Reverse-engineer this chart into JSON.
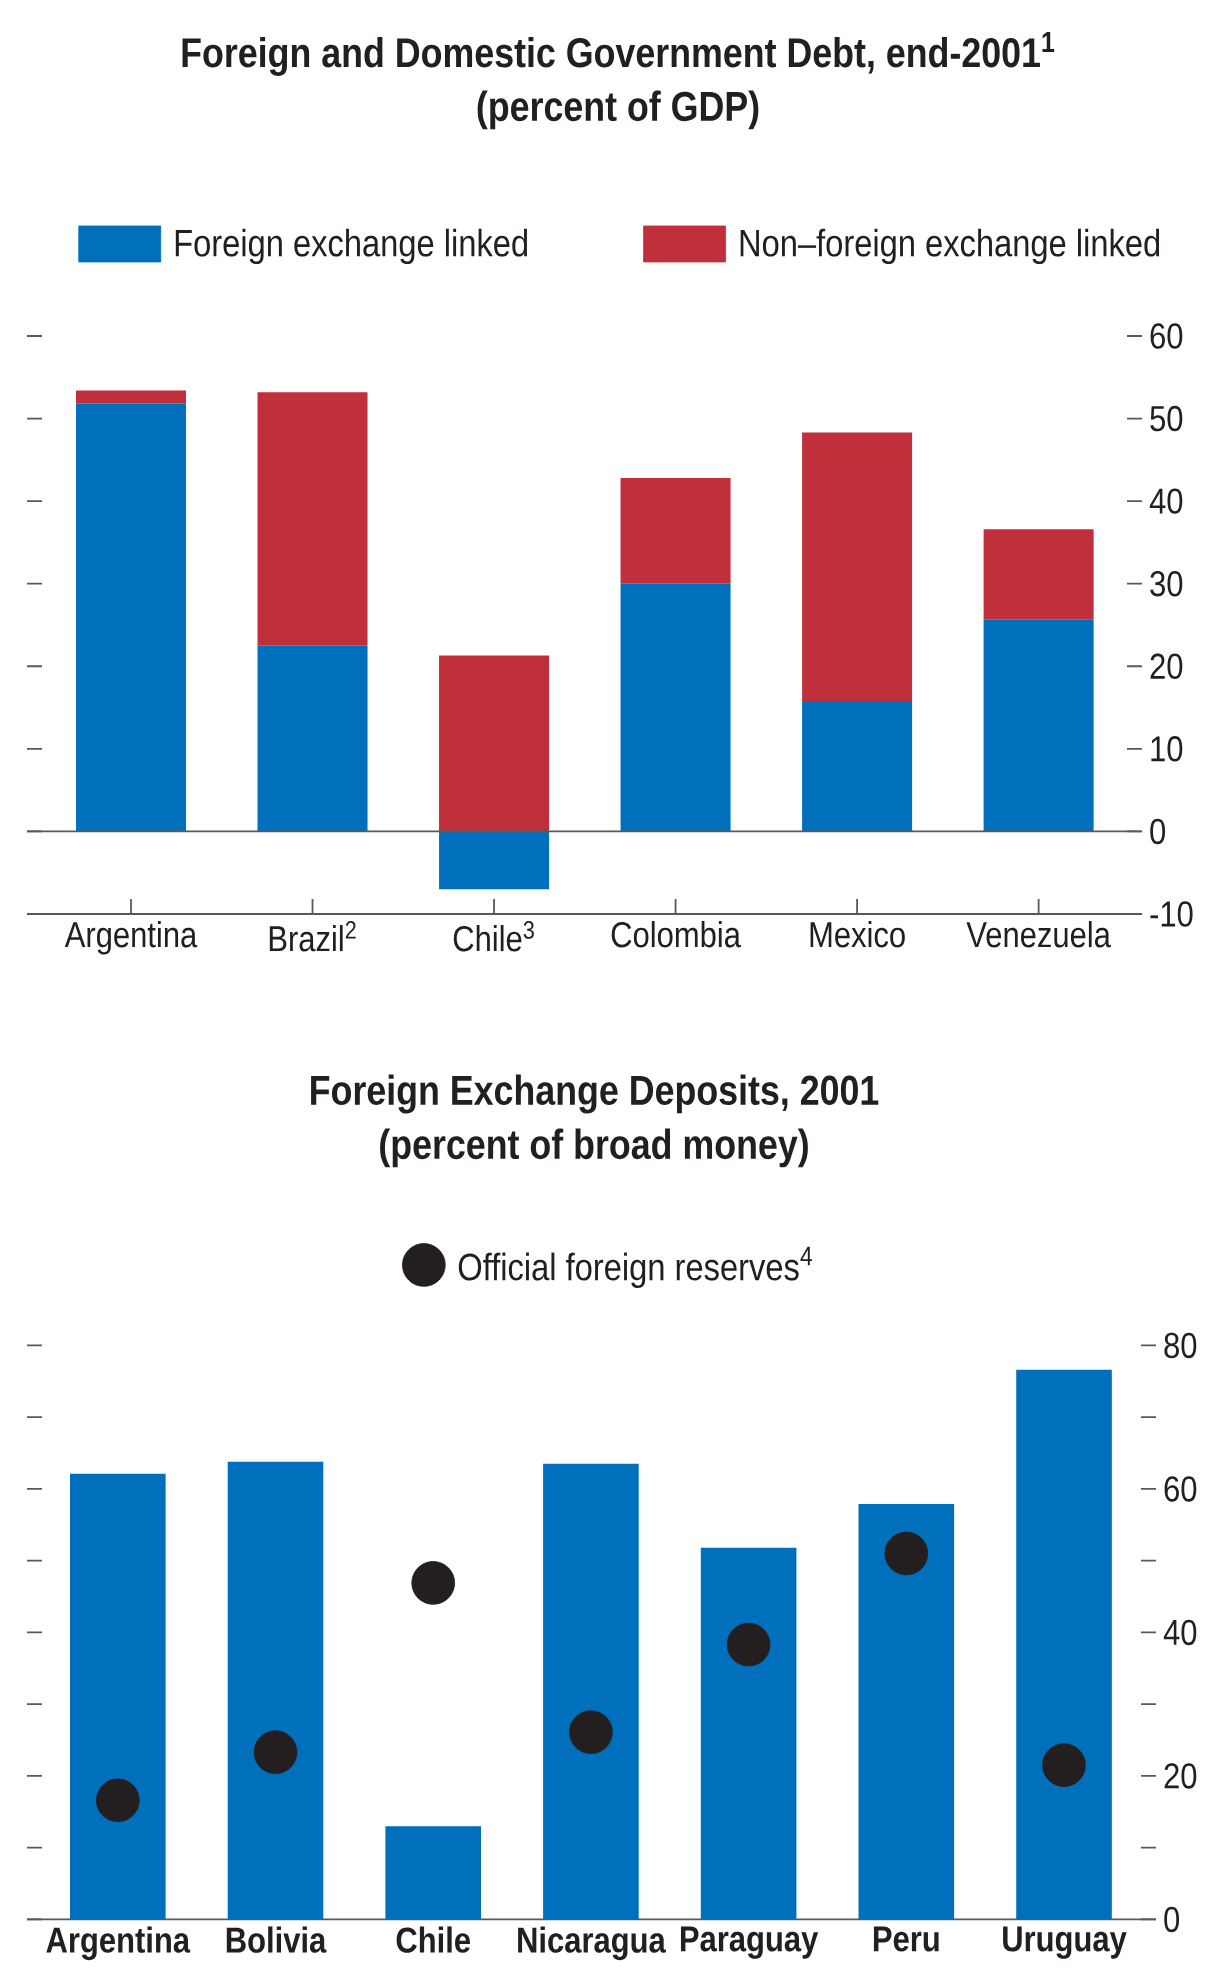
{
  "chart_data": [
    {
      "type": "bar",
      "title": "Foreign and Domestic Government Debt, end-2001$^{1}$",
      "subtitle": "(percent of GDP)",
      "categories": [
        "Argentina",
        "Brazil$^{2}$",
        "Chile$^{3}$",
        "Colombia",
        "Mexico",
        "Venezuela"
      ],
      "stacked": true,
      "series": [
        {
          "name": "Foreign exchange linked",
          "color": "#0070bc",
          "values": [
            51.8,
            22.5,
            -7.0,
            30.0,
            15.8,
            25.7
          ]
        },
        {
          "name": "Non–foreign exchange linked",
          "color": "#c0303a",
          "values": [
            1.6,
            30.7,
            21.3,
            12.8,
            32.5,
            10.9
          ]
        }
      ],
      "ylim": [
        -10,
        60
      ],
      "yticks": [
        -10,
        0,
        10,
        20,
        30,
        40,
        50,
        60
      ],
      "ref_lines": [
        {
          "axis": "y",
          "value": 0,
          "color": "#58595b"
        }
      ],
      "legend": "top"
    },
    {
      "type": "bar",
      "title": "Foreign Exchange Deposits, 2001",
      "subtitle": "(percent of broad money)",
      "categories": [
        "Argentina",
        "Bolivia",
        "Chile",
        "Nicaragua",
        "Paraguay",
        "Peru",
        "Uruguay"
      ],
      "series": [
        {
          "color": "#0070bc",
          "values": [
            62.1,
            63.8,
            13.0,
            63.5,
            51.8,
            57.9,
            76.6
          ]
        },
        {
          "type": "scatter",
          "name": "Official foreign reserves$^{4}$",
          "color": "#231f20",
          "marker": "circle",
          "x": [
            "Argentina",
            "Bolivia",
            "Chile",
            "Nicaragua",
            "Paraguay",
            "Peru",
            "Uruguay"
          ],
          "values": [
            16.6,
            23.3,
            46.9,
            26.1,
            38.3,
            51.0,
            21.5
          ]
        }
      ],
      "ylim": [
        0,
        80
      ],
      "yticks": [
        0,
        {
          "value": 10,
          "label": null
        },
        20,
        {
          "value": 30,
          "label": null
        },
        40,
        {
          "value": 50,
          "label": null
        },
        60,
        {
          "value": 70,
          "label": null
        },
        80
      ],
      "legend": "top"
    }
  ]
}
